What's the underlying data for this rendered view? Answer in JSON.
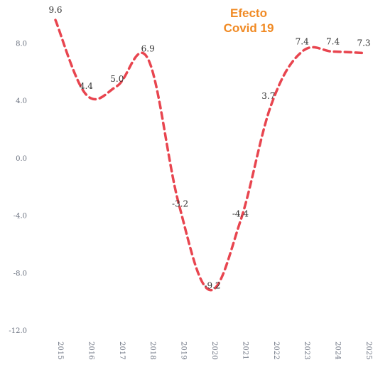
{
  "annotation": {
    "line1": "Efecto",
    "line2": "Covid 19"
  },
  "colors": {
    "line": "#e8454f",
    "annotation": "#f08a24",
    "axis_text": "#6b7280",
    "data_label": "#333333"
  },
  "chart_data": {
    "type": "line",
    "title": "",
    "xlabel": "",
    "ylabel": "",
    "ylim": [
      -12.0,
      10.0
    ],
    "yticks": [
      8.0,
      4.0,
      0.0,
      -4.0,
      -8.0,
      -12.0
    ],
    "ytick_labels": [
      "8.0",
      "4.0",
      "0.0",
      "-4.0",
      "-8.0",
      "-12.0"
    ],
    "grid": false,
    "line_style": "dashed",
    "categories": [
      "2015",
      "2016",
      "2017",
      "2018",
      "2019",
      "2020",
      "2021",
      "2022",
      "2023",
      "2024",
      "2025"
    ],
    "series": [
      {
        "values": [
          9.6,
          4.4,
          5.0,
          6.9,
          -3.2,
          -9.2,
          -4.4,
          3.7,
          7.4,
          7.4,
          7.3
        ],
        "labels": [
          "9.6",
          "4.4",
          "5.0",
          "6.9",
          "-3.2",
          "-9.2",
          "-4.4",
          "3.7",
          "7.4",
          "7.4",
          "7.3"
        ]
      }
    ]
  }
}
